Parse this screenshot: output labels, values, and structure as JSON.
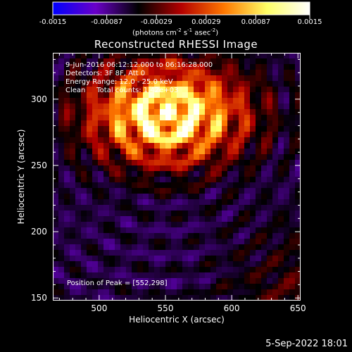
{
  "chart_data": {
    "type": "heatmap",
    "title": "Reconstructed RHESSI Image",
    "xlabel": "Heliocentric X (arcsec)",
    "ylabel": "Heliocentric Y (arcsec)",
    "xlim": [
      465,
      652
    ],
    "ylim": [
      148,
      335
    ],
    "x_ticks": [
      "500",
      "550",
      "600",
      "650"
    ],
    "y_ticks": [
      "150",
      "200",
      "250",
      "300"
    ],
    "x_tick_values": [
      500,
      550,
      600,
      650
    ],
    "y_tick_values": [
      150,
      200,
      250,
      300
    ],
    "peak": {
      "x": 552,
      "y": 298
    },
    "colorbar": {
      "min": -0.0015,
      "max": 0.0015,
      "tick_labels": [
        "-0.0015",
        "-0.00087",
        "-0.00029",
        "0.00029",
        "0.00087",
        "0.0015"
      ],
      "tick_values": [
        -0.0015,
        -0.00087,
        -0.00029,
        0.00029,
        0.00087,
        0.0015
      ],
      "units_prefix": "(photons cm",
      "units_exp1": "-2",
      "units_mid": " s",
      "units_exp2": "-1",
      "units_mid2": " asec",
      "units_exp3": "-2",
      "units_suffix": ")"
    },
    "annotations": {
      "line1": "9-Jun-2016 06:12:12.000 to 06:16:28.000",
      "line2": "Detectors: 3F 8F, Att 0",
      "line3": "Energy Range: 12.0 - 25.0 keV",
      "line4": "Clean     Total counts: 1.42e+03",
      "peak_label": "Position of Peak = [552,298]"
    },
    "colormap_colors": [
      "#0000ff",
      "#6a00c8",
      "#000000",
      "#b40000",
      "#ff7800",
      "#ffff66",
      "#ffffff"
    ]
  },
  "footer": {
    "timestamp": "5-Sep-2022 18:01"
  }
}
